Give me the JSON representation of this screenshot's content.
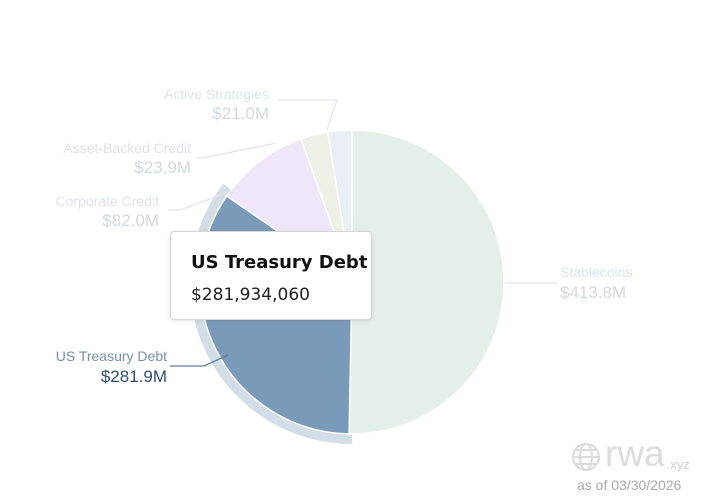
{
  "chart_data": {
    "type": "pie",
    "slices": [
      {
        "name": "Stablecoins",
        "value": 413.8,
        "label_text": "$413.8M",
        "color": "#e4efe9"
      },
      {
        "name": "US Treasury Debt",
        "value": 281.9,
        "label_text": "$281.9M",
        "color": "#7a9ab9"
      },
      {
        "name": "Corporate Credit",
        "value": 82.0,
        "label_text": "$82.0M",
        "color": "#efe6fa"
      },
      {
        "name": "Asset-Backed Credit",
        "value": 23.9,
        "label_text": "$23.9M",
        "color": "#eef1e5"
      },
      {
        "name": "Active Strategies",
        "value": 21.0,
        "label_text": "$21.0M",
        "color": "#eaeef7"
      }
    ],
    "highlighted": "US Treasury Debt"
  },
  "tooltip": {
    "title": "US Treasury Debt",
    "value": "$281,934,060"
  },
  "watermark": {
    "brand": "rwa",
    "suffix": ".xyz",
    "icon": "globe-icon"
  },
  "as_of": "as of 03/30/2026"
}
